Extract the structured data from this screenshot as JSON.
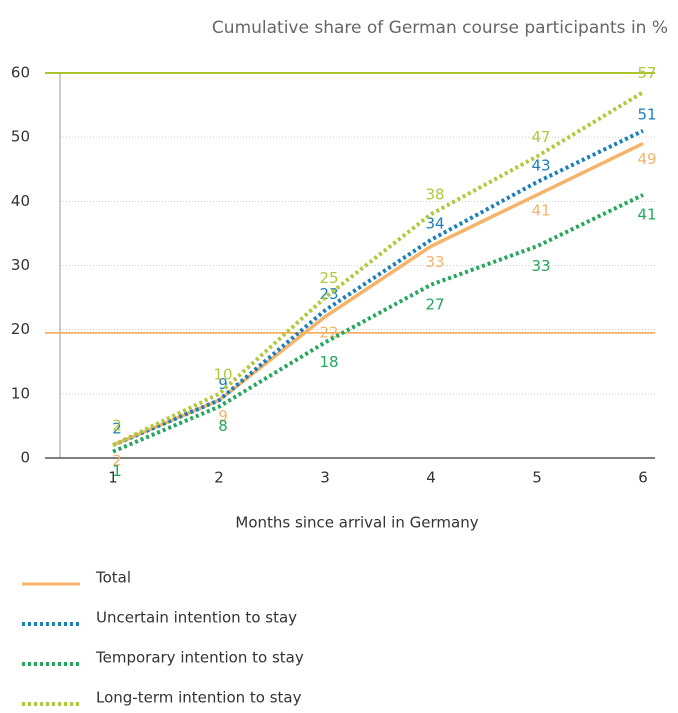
{
  "chart_data": {
    "type": "line",
    "subtitle": "Cumulative share of German course participants in %",
    "x_label": "Months since arrival in Germany",
    "categories": [
      "1",
      "2",
      "3",
      "4",
      "5",
      "6"
    ],
    "series": [
      {
        "name": "Total",
        "color": "#f5b469",
        "dash": "solid",
        "values": [
          2,
          9,
          22,
          33,
          41,
          49
        ]
      },
      {
        "name": "Uncertain intention to stay",
        "color": "#1b7fbd",
        "dash": "dotted",
        "values": [
          2,
          9,
          23,
          34,
          43,
          51
        ]
      },
      {
        "name": "Temporary intention to stay",
        "color": "#23a85b",
        "dash": "dotted",
        "values": [
          1,
          8,
          18,
          27,
          33,
          41
        ]
      },
      {
        "name": "Long-term intention to stay",
        "color": "#b0c93a",
        "dash": "dotted",
        "values": [
          2,
          10,
          25,
          38,
          47,
          57
        ]
      }
    ],
    "hlines": [
      {
        "value": 19.5,
        "color": "#f5a34f"
      }
    ],
    "ylim": [
      0,
      60
    ],
    "yticks": [
      0,
      10,
      20,
      30,
      40,
      50,
      60
    ],
    "grid": true,
    "legend": "bottom"
  }
}
